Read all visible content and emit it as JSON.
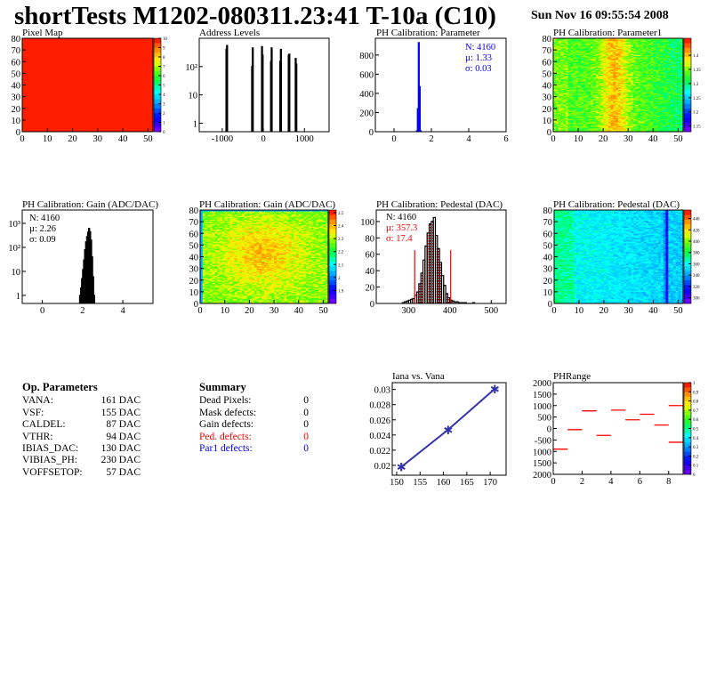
{
  "header": {
    "title": "shortTests M1202-080311.23:41 T-10a (C10)",
    "date": "Sun Nov 16 09:55:54 2008"
  },
  "colors": {
    "histogram": "#000000",
    "parameter_hist": "#0000ff",
    "pedestal_cut": "#ff0000",
    "iana_line": "#3333aa",
    "phrange_marks": "#ff0000",
    "ped_defects": "#ff0000",
    "par1_defects": "#0000ff"
  },
  "op_parameters": {
    "title": "Op. Parameters",
    "items": [
      {
        "name": "VANA:",
        "value": "161 DAC"
      },
      {
        "name": "VSF:",
        "value": "155 DAC"
      },
      {
        "name": "CALDEL:",
        "value": "87 DAC"
      },
      {
        "name": "VTHR:",
        "value": "94 DAC"
      },
      {
        "name": "IBIAS_DAC:",
        "value": "130 DAC"
      },
      {
        "name": "VIBIAS_PH:",
        "value": "230 DAC"
      },
      {
        "name": "VOFFSETOP:",
        "value": "57 DAC"
      }
    ]
  },
  "summary": {
    "title": "Summary",
    "items": [
      {
        "name": "Dead Pixels:",
        "value": "0",
        "color": "#000000"
      },
      {
        "name": "Mask defects:",
        "value": "0",
        "color": "#000000"
      },
      {
        "name": "Gain defects:",
        "value": "0",
        "color": "#000000"
      },
      {
        "name": "Ped. defects:",
        "value": "0",
        "color": "#ff0000"
      },
      {
        "name": "Par1 defects:",
        "value": "0",
        "color": "#0000ff"
      }
    ]
  },
  "chart_data": [
    {
      "id": "pixel",
      "type": "heatmap",
      "title": "Pixel Map",
      "xlim": [
        0,
        52
      ],
      "ylim": [
        0,
        80
      ],
      "zlim": [
        0,
        10
      ],
      "uniform_value": 10,
      "xticks": [
        "0",
        "10",
        "20",
        "30",
        "40",
        "50"
      ],
      "yticks": [
        "0",
        "10",
        "20",
        "30",
        "40",
        "50",
        "60",
        "70",
        "80"
      ],
      "zticks": [
        "0",
        "1",
        "2",
        "3",
        "4",
        "5",
        "6",
        "7",
        "8",
        "9",
        "10"
      ]
    },
    {
      "id": "address",
      "type": "bar",
      "title": "Address Levels",
      "ylog": true,
      "xlim": [
        -1560,
        1600
      ],
      "ylim": [
        0.5,
        1000
      ],
      "xticks": [
        {
          "v": -1000,
          "label": "-1000"
        },
        {
          "v": 0,
          "label": "0"
        },
        {
          "v": 1000,
          "label": "1000"
        }
      ],
      "yticks": [
        {
          "v": 1,
          "label": "1"
        },
        {
          "v": 10,
          "label": "10"
        },
        {
          "v": 100,
          "label": "10²"
        }
      ],
      "bin_width": 15,
      "bins": [
        [
          -905,
          400
        ],
        [
          -890,
          550
        ],
        [
          -280,
          100
        ],
        [
          -265,
          450
        ],
        [
          -40,
          500
        ],
        [
          -25,
          250
        ],
        [
          180,
          150
        ],
        [
          195,
          450
        ],
        [
          405,
          150
        ],
        [
          420,
          400
        ],
        [
          610,
          250
        ],
        [
          625,
          270
        ],
        [
          780,
          190
        ],
        [
          795,
          120
        ]
      ]
    },
    {
      "id": "param",
      "type": "bar",
      "title": "PH Calibration: Parameter",
      "xlim": [
        -1,
        6
      ],
      "ylim": [
        0,
        975
      ],
      "xticks": [
        {
          "v": 0,
          "label": "0"
        },
        {
          "v": 2,
          "label": "2"
        },
        {
          "v": 4,
          "label": "4"
        },
        {
          "v": 6,
          "label": "6"
        }
      ],
      "yticks": [
        {
          "v": 0,
          "label": "0"
        },
        {
          "v": 200,
          "label": "200"
        },
        {
          "v": 400,
          "label": "400"
        },
        {
          "v": 600,
          "label": "600"
        },
        {
          "v": 800,
          "label": "800"
        }
      ],
      "bin_width": 0.05,
      "bins": [
        [
          1.2,
          10
        ],
        [
          1.25,
          240
        ],
        [
          1.3,
          930
        ],
        [
          1.35,
          470
        ],
        [
          1.4,
          10
        ]
      ],
      "stats": [
        "N: 4160",
        "µ: 1.33",
        "σ: 0.03"
      ]
    },
    {
      "id": "param1",
      "type": "heatmap",
      "title": "PH Calibration: Parameter1",
      "xlim": [
        0,
        52
      ],
      "ylim": [
        0,
        80
      ],
      "zlim": [
        1.13,
        1.46
      ],
      "xticks": [
        "0",
        "10",
        "20",
        "30",
        "40",
        "50"
      ],
      "yticks": [
        "0",
        "10",
        "20",
        "30",
        "40",
        "50",
        "60",
        "70",
        "80"
      ],
      "zticks": [
        {
          "v": 1.15,
          "label": "1.15"
        },
        {
          "v": 1.2,
          "label": "1.2"
        },
        {
          "v": 1.25,
          "label": "1.25"
        },
        {
          "v": 1.3,
          "label": "1.3"
        },
        {
          "v": 1.35,
          "label": "1.35"
        },
        {
          "v": 1.4,
          "label": "1.4"
        }
      ]
    },
    {
      "id": "gainhist",
      "type": "bar",
      "title": "PH Calibration: Gain (ADC/DAC)",
      "ylog": true,
      "xlim": [
        -1,
        5.5
      ],
      "ylim": [
        0.46,
        3600
      ],
      "xticks": [
        {
          "v": 0,
          "label": "0"
        },
        {
          "v": 2,
          "label": "2"
        },
        {
          "v": 4,
          "label": "4"
        }
      ],
      "yticks": [
        {
          "v": 1,
          "label": "1"
        },
        {
          "v": 10,
          "label": "10"
        },
        {
          "v": 100,
          "label": "10²"
        },
        {
          "v": 1000,
          "label": "10³"
        }
      ],
      "bin_width": 0.05,
      "bins": [
        [
          1.85,
          1
        ],
        [
          1.9,
          2
        ],
        [
          1.95,
          5
        ],
        [
          2.0,
          12
        ],
        [
          2.05,
          30
        ],
        [
          2.1,
          80
        ],
        [
          2.15,
          170
        ],
        [
          2.2,
          280
        ],
        [
          2.25,
          430
        ],
        [
          2.3,
          620
        ],
        [
          2.35,
          450
        ],
        [
          2.4,
          200
        ],
        [
          2.45,
          40
        ],
        [
          2.5,
          6
        ],
        [
          2.55,
          1
        ]
      ],
      "stats": [
        "N: 4160",
        "µ: 2.26",
        "σ: 0.09"
      ]
    },
    {
      "id": "gainmap",
      "type": "heatmap",
      "title": "PH Calibration: Gain (ADC/DAC)",
      "xlim": [
        0,
        52
      ],
      "ylim": [
        0,
        80
      ],
      "zlim": [
        1.8,
        2.52
      ],
      "xticks": [
        "0",
        "10",
        "20",
        "30",
        "40",
        "50"
      ],
      "yticks": [
        "0",
        "10",
        "20",
        "30",
        "40",
        "50",
        "60",
        "70",
        "80"
      ],
      "zticks": [
        {
          "v": 1.9,
          "label": "1.9"
        },
        {
          "v": 2.0,
          "label": "2"
        },
        {
          "v": 2.1,
          "label": "2.1"
        },
        {
          "v": 2.2,
          "label": "2.2"
        },
        {
          "v": 2.3,
          "label": "2.3"
        },
        {
          "v": 2.4,
          "label": "2.4"
        },
        {
          "v": 2.5,
          "label": "2.5"
        }
      ]
    },
    {
      "id": "pedhist",
      "type": "bar",
      "title": "PH Calibration: Pedestal (DAC)",
      "xlim": [
        222,
        536
      ],
      "ylim": [
        0,
        114
      ],
      "xticks": [
        {
          "v": 300,
          "label": "300"
        },
        {
          "v": 400,
          "label": "400"
        },
        {
          "v": 500,
          "label": "500"
        }
      ],
      "yticks": [
        {
          "v": 0,
          "label": "0"
        },
        {
          "v": 20,
          "label": "20"
        },
        {
          "v": 40,
          "label": "40"
        },
        {
          "v": 60,
          "label": "60"
        },
        {
          "v": 80,
          "label": "80"
        },
        {
          "v": 100,
          "label": "100"
        }
      ],
      "bin_width": 5,
      "bins": [
        [
          285,
          1
        ],
        [
          290,
          2
        ],
        [
          295,
          3
        ],
        [
          300,
          4
        ],
        [
          305,
          5
        ],
        [
          310,
          6
        ],
        [
          315,
          10
        ],
        [
          320,
          14
        ],
        [
          325,
          24
        ],
        [
          330,
          37
        ],
        [
          335,
          53
        ],
        [
          340,
          70
        ],
        [
          345,
          86
        ],
        [
          350,
          97
        ],
        [
          355,
          100
        ],
        [
          360,
          105
        ],
        [
          365,
          83
        ],
        [
          370,
          67
        ],
        [
          375,
          50
        ],
        [
          380,
          34
        ],
        [
          385,
          22
        ],
        [
          390,
          12
        ],
        [
          395,
          7
        ],
        [
          400,
          4
        ],
        [
          405,
          3
        ],
        [
          410,
          2
        ],
        [
          415,
          2
        ],
        [
          420,
          1
        ],
        [
          425,
          1
        ],
        [
          430,
          1
        ],
        [
          435,
          1
        ],
        [
          440,
          0
        ],
        [
          445,
          0
        ],
        [
          450,
          0
        ],
        [
          455,
          1
        ]
      ],
      "cut_lines": [
        {
          "x": 315,
          "height": 65
        },
        {
          "x": 402,
          "height": 65
        }
      ],
      "stats": [
        "N: 4160",
        "µ: 357.3",
        "σ: 17.4"
      ]
    },
    {
      "id": "pedmap",
      "type": "heatmap",
      "title": "PH Calibration: Pedestal (DAC)",
      "xlim": [
        0,
        52
      ],
      "ylim": [
        0,
        80
      ],
      "zlim": [
        290,
        455
      ],
      "xticks": [
        "0",
        "10",
        "20",
        "30",
        "40",
        "50"
      ],
      "yticks": [
        "0",
        "10",
        "20",
        "30",
        "40",
        "50",
        "60",
        "70",
        "80"
      ],
      "zticks": [
        {
          "v": 300,
          "label": "300"
        },
        {
          "v": 320,
          "label": "320"
        },
        {
          "v": 340,
          "label": "340"
        },
        {
          "v": 360,
          "label": "360"
        },
        {
          "v": 380,
          "label": "380"
        },
        {
          "v": 400,
          "label": "400"
        },
        {
          "v": 420,
          "label": "420"
        },
        {
          "v": 440,
          "label": "440"
        }
      ]
    },
    {
      "id": "iana",
      "type": "line",
      "title": "Iana vs. Vana",
      "xlim": [
        149.05,
        173.4
      ],
      "ylim": [
        0.0187,
        0.0309
      ],
      "xticks": [
        {
          "v": 150,
          "label": "150"
        },
        {
          "v": 155,
          "label": "155"
        },
        {
          "v": 160,
          "label": "160"
        },
        {
          "v": 165,
          "label": "165"
        },
        {
          "v": 170,
          "label": "170"
        }
      ],
      "yticks": [
        {
          "v": 0.02,
          "label": "0.02"
        },
        {
          "v": 0.022,
          "label": "0.022"
        },
        {
          "v": 0.024,
          "label": "0.024"
        },
        {
          "v": 0.026,
          "label": "0.026"
        },
        {
          "v": 0.028,
          "label": "0.028"
        },
        {
          "v": 0.03,
          "label": "0.03"
        }
      ],
      "x": [
        151,
        161,
        171
      ],
      "y": [
        0.0198,
        0.0247,
        0.0301
      ]
    },
    {
      "id": "phrange",
      "type": "scatter",
      "title": "PHRange",
      "xlim": [
        0,
        9
      ],
      "ylim": [
        -2000,
        2000
      ],
      "zlim": [
        0,
        1
      ],
      "xticks": [
        {
          "v": 0,
          "label": "0"
        },
        {
          "v": 2,
          "label": "2"
        },
        {
          "v": 4,
          "label": "4"
        },
        {
          "v": 6,
          "label": "6"
        },
        {
          "v": 8,
          "label": "8"
        }
      ],
      "yticks": [
        {
          "v": 2000,
          "label": "2000"
        },
        {
          "v": 1500,
          "label": "1500"
        },
        {
          "v": 1000,
          "label": "1000"
        },
        {
          "v": 500,
          "label": "500"
        },
        {
          "v": 0,
          "label": "0"
        },
        {
          "v": -500,
          "label": "-500"
        },
        {
          "v": -1000,
          "label": "1000"
        },
        {
          "v": -1500,
          "label": "1500"
        },
        {
          "v": -2000,
          "label": "2000"
        }
      ],
      "zticks": [
        {
          "v": 0,
          "label": "0"
        },
        {
          "v": 0.1,
          "label": "0.1"
        },
        {
          "v": 0.2,
          "label": "0.2"
        },
        {
          "v": 0.3,
          "label": "0.3"
        },
        {
          "v": 0.4,
          "label": "0.4"
        },
        {
          "v": 0.5,
          "label": "0.5"
        },
        {
          "v": 0.6,
          "label": "0.6"
        },
        {
          "v": 0.7,
          "label": "0.7"
        },
        {
          "v": 0.8,
          "label": "0.8"
        },
        {
          "v": 0.9,
          "label": "0.9"
        },
        {
          "v": 1,
          "label": "1"
        }
      ],
      "segments": [
        [
          0,
          -900
        ],
        [
          1,
          -50
        ],
        [
          2,
          770
        ],
        [
          3,
          -300
        ],
        [
          4,
          800
        ],
        [
          5,
          380
        ],
        [
          6,
          620
        ],
        [
          7,
          150
        ],
        [
          8,
          1000
        ],
        [
          8,
          -600
        ]
      ]
    }
  ]
}
